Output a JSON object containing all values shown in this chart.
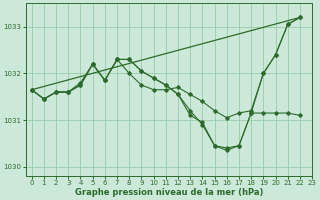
{
  "title": "Graphe pression niveau de la mer (hPa)",
  "background_color": "#cce8d8",
  "grid_color": "#99ccaa",
  "line_color": "#2d6b2d",
  "xlim": [
    -0.5,
    23
  ],
  "ylim": [
    1029.8,
    1033.5
  ],
  "yticks": [
    1030,
    1031,
    1032,
    1033
  ],
  "xticks": [
    0,
    1,
    2,
    3,
    4,
    5,
    6,
    7,
    8,
    9,
    10,
    11,
    12,
    13,
    14,
    15,
    16,
    17,
    18,
    19,
    20,
    21,
    22,
    23
  ],
  "series_with_markers": [
    {
      "x": [
        0,
        1,
        2,
        3,
        4,
        5,
        6,
        7,
        8,
        9,
        10,
        11,
        12,
        13,
        14,
        15,
        16,
        17,
        18,
        19,
        20,
        21,
        22
      ],
      "y": [
        1031.65,
        1031.45,
        1031.6,
        1031.6,
        1031.8,
        1032.2,
        1031.85,
        1032.3,
        1032.0,
        1031.75,
        1031.65,
        1031.65,
        1031.7,
        1031.55,
        1031.4,
        1031.2,
        1031.05,
        1031.15,
        1031.2,
        1032.0,
        1032.4,
        1033.05,
        1033.2
      ]
    },
    {
      "x": [
        0,
        1,
        2,
        3,
        4,
        5,
        6,
        7,
        8,
        9,
        10,
        11,
        12,
        13,
        14,
        15,
        16,
        17,
        18,
        19,
        20,
        21,
        22
      ],
      "y": [
        1031.65,
        1031.45,
        1031.6,
        1031.6,
        1031.75,
        1032.2,
        1031.85,
        1032.3,
        1032.3,
        1032.05,
        1031.9,
        1031.75,
        1031.55,
        1031.2,
        1030.9,
        1030.45,
        1030.4,
        1030.45,
        1031.15,
        1032.0,
        1032.4,
        1033.05,
        1033.2
      ]
    },
    {
      "x": [
        0,
        1,
        2,
        3,
        4,
        5,
        6,
        7,
        8,
        9,
        10,
        11,
        12,
        13,
        14,
        15,
        16,
        17,
        18,
        19,
        20,
        21,
        22
      ],
      "y": [
        1031.65,
        1031.45,
        1031.6,
        1031.6,
        1031.75,
        1032.2,
        1031.85,
        1032.3,
        1032.3,
        1032.05,
        1031.9,
        1031.75,
        1031.55,
        1031.1,
        1030.95,
        1030.45,
        1030.35,
        1030.45,
        1031.15,
        1031.15,
        1031.15,
        1031.15,
        1031.1
      ]
    }
  ],
  "series_straight": {
    "x": [
      0,
      22
    ],
    "y": [
      1031.65,
      1033.2
    ]
  }
}
